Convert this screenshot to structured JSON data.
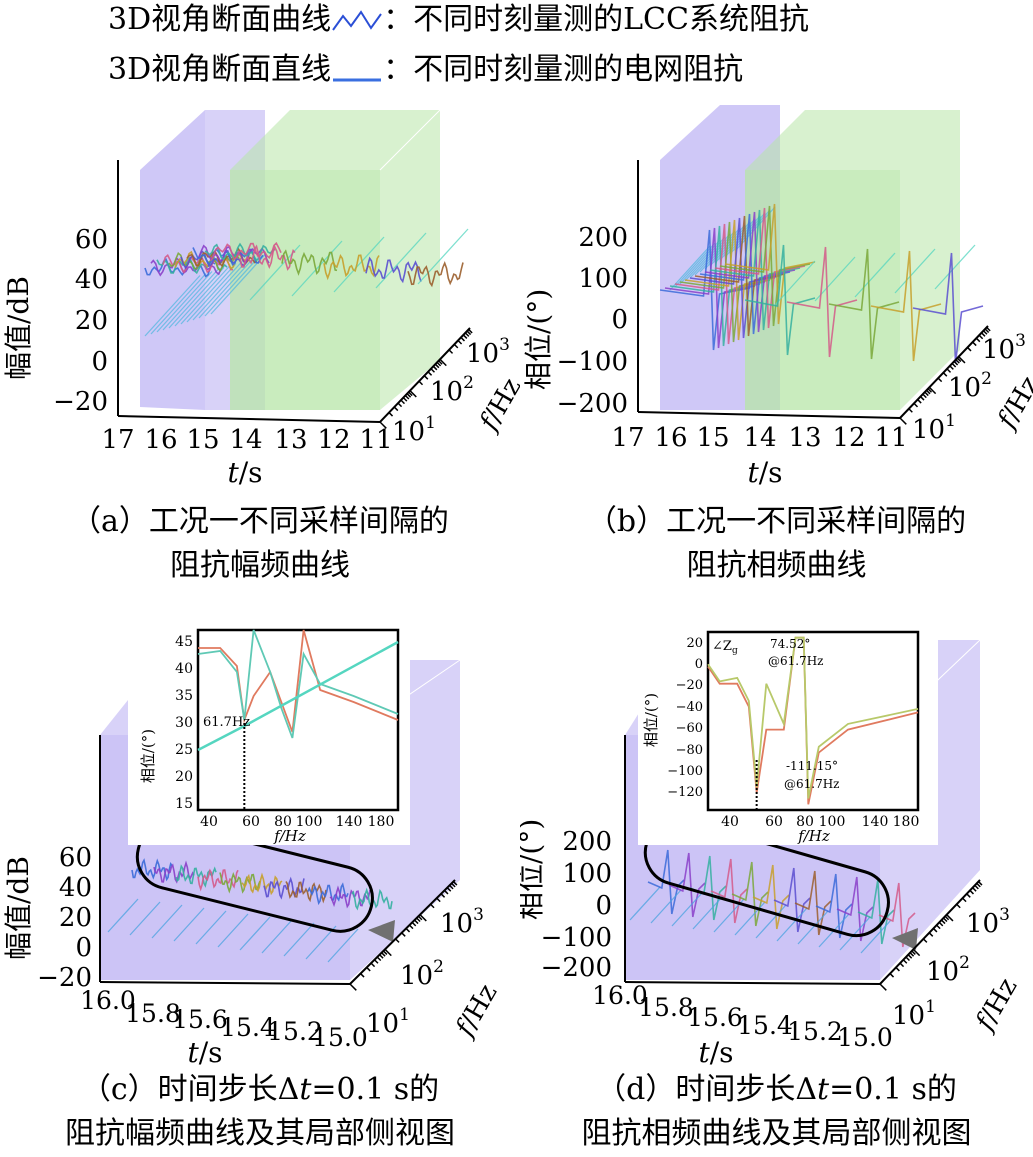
{
  "legend": [
    {
      "prefix": "3D视角断面曲线",
      "sep": "：",
      "text": "不同时刻量测的LCC系统阻抗",
      "color": "#2b4fd6",
      "icon": "wavy-curve-icon"
    },
    {
      "prefix": "3D视角断面直线",
      "sep": "：",
      "text": "不同时刻量测的电网阻抗",
      "color": "#3a6fe0",
      "icon": "straight-line-icon"
    }
  ],
  "colors": {
    "purple_box": "#a89bf0",
    "green_box": "#b8e6a8",
    "inset_line_a": "#e07a5f",
    "inset_line_b": "#5fc9b5",
    "grid_line": "#55d6c0",
    "arrow": "#707070"
  },
  "panels": {
    "a": {
      "caption_1": "（a）工况一不同采样间隔的",
      "caption_2": "阻抗幅频曲线",
      "ylabel": "幅值/dB",
      "xlabel_var": "t",
      "xlabel_unit": "/s",
      "flabel_var": "f",
      "flabel_unit": "/Hz",
      "yticks": [
        "60",
        "40",
        "20",
        "0",
        "−20"
      ],
      "xticks": [
        "17",
        "16",
        "15",
        "14",
        "13",
        "12",
        "11"
      ],
      "fticks": [
        "10",
        "10",
        "10"
      ],
      "fexps": [
        "1",
        "2",
        "3"
      ]
    },
    "b": {
      "caption_1": "（b）工况一不同采样间隔的",
      "caption_2": "阻抗相频曲线",
      "ylabel": "相位/(°)",
      "xlabel_var": "t",
      "xlabel_unit": "/s",
      "flabel_var": "f",
      "flabel_unit": "/Hz",
      "yticks": [
        "200",
        "100",
        "0",
        "−100",
        "−200"
      ],
      "xticks": [
        "17",
        "16",
        "15",
        "14",
        "13",
        "12",
        "11"
      ],
      "fticks": [
        "10",
        "10",
        "10"
      ],
      "fexps": [
        "1",
        "2",
        "3"
      ]
    },
    "c": {
      "caption_1": "（c）时间步长Δ",
      "caption_t": "t",
      "caption_1b": "=0.1 s的",
      "caption_2": "阻抗幅频曲线及其局部侧视图",
      "ylabel": "幅值/dB",
      "xlabel_var": "t",
      "xlabel_unit": "/s",
      "flabel_var": "f",
      "flabel_unit": "/Hz",
      "yticks": [
        "60",
        "40",
        "20",
        "0",
        "−20"
      ],
      "xticks": [
        "16.0",
        "15.8",
        "15.6",
        "15.4",
        "15.2",
        "15.0"
      ],
      "fticks": [
        "10",
        "10",
        "10"
      ],
      "fexps": [
        "1",
        "2",
        "3"
      ],
      "inset": {
        "ylabel": "相位/(°)",
        "xlabel": "f/Hz",
        "yticks": [
          "45",
          "40",
          "35",
          "30",
          "25",
          "20",
          "15"
        ],
        "xticks": [
          "40",
          "60",
          "80",
          "100",
          "140",
          "180"
        ],
        "annotation": "61.7Hz"
      }
    },
    "d": {
      "caption_1": "（d）时间步长Δ",
      "caption_t": "t",
      "caption_1b": "=0.1 s的",
      "caption_2": "阻抗相频曲线及其局部侧视图",
      "ylabel": "相位/(°)",
      "xlabel_var": "t",
      "xlabel_unit": "/s",
      "flabel_var": "f",
      "flabel_unit": "/Hz",
      "yticks": [
        "200",
        "100",
        "0",
        "−100",
        "−200"
      ],
      "xticks": [
        "16.0",
        "15.8",
        "15.6",
        "15.4",
        "15.2",
        "15.0"
      ],
      "fticks": [
        "10",
        "10",
        "10"
      ],
      "fexps": [
        "1",
        "2",
        "3"
      ],
      "inset": {
        "ylabel": "相位/(°)",
        "xlabel": "f/Hz",
        "yticks": [
          "20",
          "0",
          "−20",
          "−40",
          "−60",
          "−80",
          "−100",
          "−120"
        ],
        "xticks": [
          "40",
          "60",
          "80",
          "100",
          "140",
          "180"
        ],
        "annotation_label": "∠Z",
        "annotation_sub": "g",
        "annotation_1": "74.52°",
        "annotation_2": "@61.7Hz",
        "annotation_3": "-111.15°",
        "annotation_4": "@61.7Hz"
      }
    }
  },
  "chart_data": [
    {
      "type": "line",
      "id": "a",
      "view": "3d",
      "ylabel": "幅值/dB",
      "xlabel": "t/s",
      "zlabel": "f/Hz",
      "ylim": [
        -20,
        60
      ],
      "xlim": [
        17,
        11
      ],
      "zticks": [
        "10^1",
        "10^2",
        "10^3"
      ],
      "series_description_values": {
        "lcc_impedance_level_db": [
          40,
          60
        ],
        "grid_impedance_slope": "rising"
      }
    },
    {
      "type": "line",
      "id": "b",
      "view": "3d",
      "ylabel": "相位/(°)",
      "xlabel": "t/s",
      "zlabel": "f/Hz",
      "ylim": [
        -200,
        200
      ],
      "xlim": [
        17,
        11
      ],
      "zticks": [
        "10^1",
        "10^2",
        "10^3"
      ]
    },
    {
      "type": "line",
      "id": "c",
      "view": "3d",
      "ylabel": "幅值/dB",
      "xlabel": "t/s",
      "zlabel": "f/Hz",
      "ylim": [
        -20,
        60
      ],
      "xlim": [
        16.0,
        15.0
      ],
      "zticks": [
        "10^1",
        "10^2",
        "10^3"
      ],
      "inset": {
        "xlim": [
          20,
          200
        ],
        "ylim": [
          15,
          45
        ],
        "marker_x": 61.7,
        "series": [
          {
            "values_x": [
              20,
              40,
              55,
              61.7,
              70,
              85,
              95,
              105,
              115,
              130,
              160,
              200
            ],
            "values_y": [
              42,
              42,
              39,
              30,
              34,
              38,
              33,
              28,
              45,
              35,
              33,
              30
            ]
          },
          {
            "values_x": [
              20,
              40,
              55,
              61.7,
              70,
              85,
              95,
              105,
              115,
              130,
              160,
              200
            ],
            "values_y": [
              41,
              41.5,
              38,
              30,
              45,
              38,
              32,
              27,
              41,
              36,
              34,
              31
            ]
          },
          {
            "values_x": [
              20,
              61.7,
              200
            ],
            "values_y": [
              25,
              29,
              43
            ]
          }
        ]
      }
    },
    {
      "type": "line",
      "id": "d",
      "view": "3d",
      "ylabel": "相位/(°)",
      "xlabel": "t/s",
      "zlabel": "f/Hz",
      "ylim": [
        -200,
        200
      ],
      "xlim": [
        16.0,
        15.0
      ],
      "zticks": [
        "10^1",
        "10^2",
        "10^3"
      ],
      "inset": {
        "xlim": [
          20,
          200
        ],
        "ylim": [
          -130,
          25
        ],
        "marker_x": 61.7,
        "annotations": [
          74.52,
          -111.15
        ],
        "series": [
          {
            "values_x": [
              20,
              30,
              45,
              55,
              61.7,
              70,
              85,
              95,
              102,
              106,
              115,
              140,
              200
            ],
            "values_y": [
              -5,
              -20,
              -20,
              -40,
              -115,
              -60,
              -60,
              20,
              20,
              -125,
              -80,
              -60,
              -45
            ]
          },
          {
            "values_x": [
              20,
              30,
              45,
              55,
              61.7,
              70,
              85,
              95,
              102,
              106,
              115,
              140,
              200
            ],
            "values_y": [
              -3,
              -18,
              -15,
              -35,
              -110,
              -20,
              -55,
              20,
              20,
              -120,
              -75,
              -55,
              -42
            ]
          }
        ]
      }
    }
  ]
}
